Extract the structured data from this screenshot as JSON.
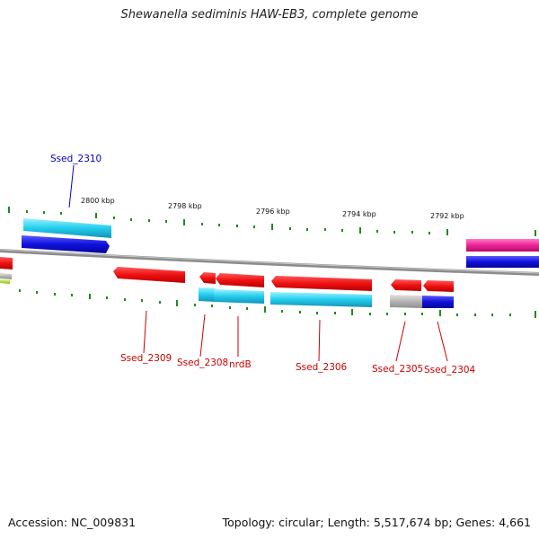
{
  "title": "Shewanella sediminis HAW-EB3, complete genome",
  "footer": {
    "accession": "Accession: NC_009831",
    "summary": "Topology: circular; Length: 5,517,674 bp; Genes: 4,661"
  },
  "colors": {
    "backbone": "#8c8c8c",
    "tick": "#1d8a1d",
    "gene_red": "#ee1111",
    "gene_cyan": "#22ccee",
    "gene_blue": "#1111dd",
    "gene_magenta": "#ee2299",
    "gene_gray": "#b5b5b5",
    "gene_lime": "#aadd22",
    "label_red": "#cc0000",
    "label_blue": "#0000bb"
  },
  "ticks": [
    {
      "label": "2800 kbp"
    },
    {
      "label": "2798 kbp"
    },
    {
      "label": "2796 kbp"
    },
    {
      "label": "2794 kbp"
    },
    {
      "label": "2792 kbp"
    }
  ],
  "genes": [
    {
      "label": "Ssed_2310",
      "color": "label_blue"
    },
    {
      "label": "Ssed_2309",
      "color": "label_red"
    },
    {
      "label": "Ssed_2308",
      "color": "label_red"
    },
    {
      "label": "nrdB",
      "color": "label_red"
    },
    {
      "label": "Ssed_2306",
      "color": "label_red"
    },
    {
      "label": "Ssed_2305",
      "color": "label_red"
    },
    {
      "label": "Ssed_2304",
      "color": "label_red"
    }
  ]
}
